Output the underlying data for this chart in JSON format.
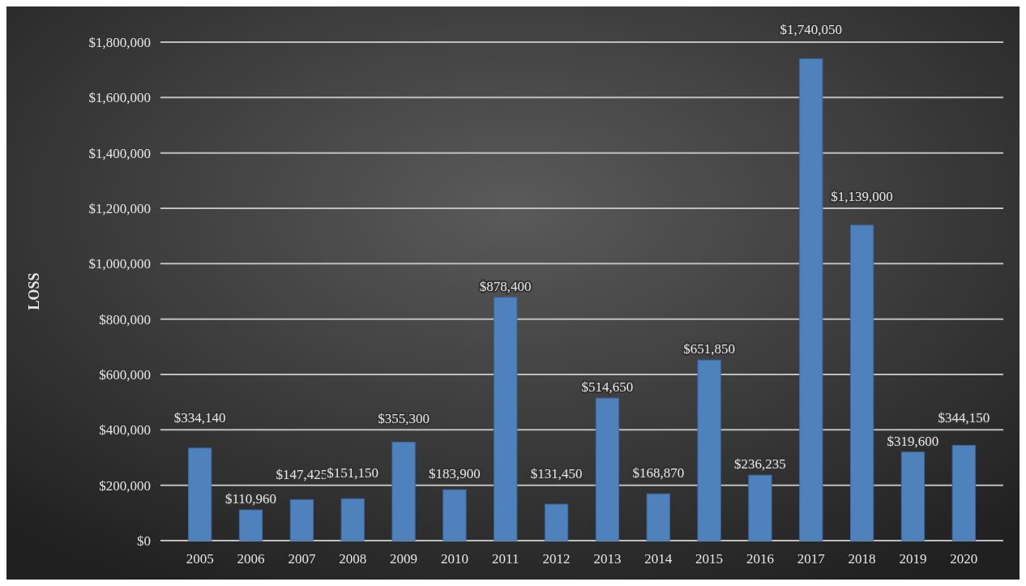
{
  "chart_data": {
    "type": "bar",
    "ylabel": "LOSS",
    "categories": [
      "2005",
      "2006",
      "2007",
      "2008",
      "2009",
      "2010",
      "2011",
      "2012",
      "2013",
      "2014",
      "2015",
      "2016",
      "2017",
      "2018",
      "2019",
      "2020"
    ],
    "values": [
      334140,
      110960,
      147425,
      151150,
      355300,
      183900,
      878400,
      131450,
      514650,
      168870,
      651850,
      236235,
      1740050,
      1139000,
      319600,
      344150
    ],
    "value_labels": [
      "$334,140",
      "$110,960",
      "$147,425",
      "$151,150",
      "$355,300",
      "$183,900",
      "$878,400",
      "$131,450",
      "$514,650",
      "$168,870",
      "$651,850",
      "$236,235",
      "$1,740,050",
      "$1,139,000",
      "$319,600",
      "$344,150"
    ],
    "color": "#4f81bd",
    "ylim": [
      0,
      1800000
    ],
    "yticks": [
      {
        "value": 0,
        "label": "$0"
      },
      {
        "value": 200000,
        "label": "$200,000"
      },
      {
        "value": 400000,
        "label": "$400,000"
      },
      {
        "value": 600000,
        "label": "$600,000"
      },
      {
        "value": 800000,
        "label": "$800,000"
      },
      {
        "value": 1000000,
        "label": "$1,000,000"
      },
      {
        "value": 1200000,
        "label": "$1,200,000"
      },
      {
        "value": 1400000,
        "label": "$1,400,000"
      },
      {
        "value": 1600000,
        "label": "$1,600,000"
      },
      {
        "value": 1800000,
        "label": "$1,800,000"
      }
    ],
    "grid": true
  }
}
